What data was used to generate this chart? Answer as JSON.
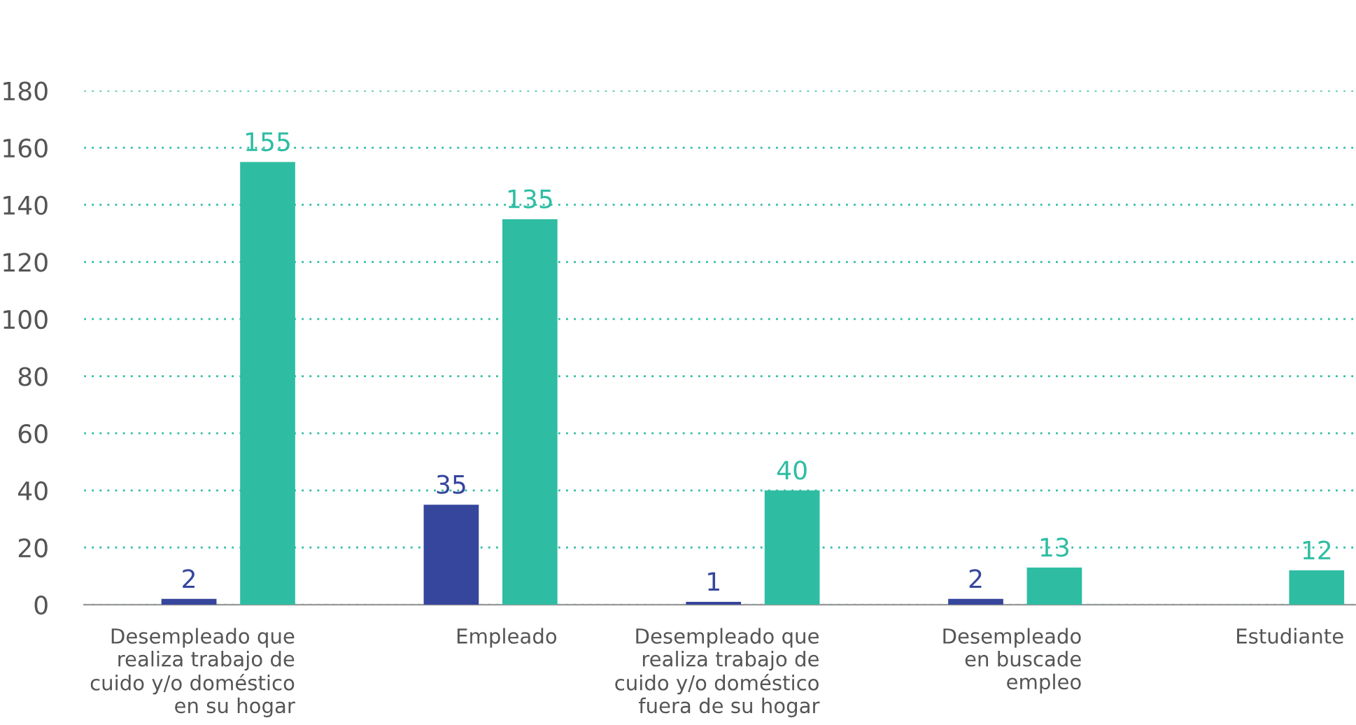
{
  "chart_data": {
    "type": "bar",
    "categories": [
      "Desempleado que\nrealiza trabajo de\ncuido y/o doméstico\nen su hogar",
      "Empleado",
      "Desempleado que\nrealiza trabajo de\ncuido y/o doméstico\nfuera de su hogar",
      "Desempleado\nen buscade\nempleo",
      "Estudiante"
    ],
    "series": [
      {
        "color": "#35469c",
        "values": [
          2,
          35,
          1,
          2,
          null
        ]
      },
      {
        "color": "#2ebda3",
        "values": [
          155,
          135,
          40,
          13,
          12
        ]
      }
    ],
    "ylim": [
      0,
      180
    ],
    "yticks": [
      0,
      20,
      40,
      60,
      80,
      100,
      120,
      140,
      160,
      180
    ],
    "grid": "y",
    "data_labels": true,
    "legend": false
  }
}
